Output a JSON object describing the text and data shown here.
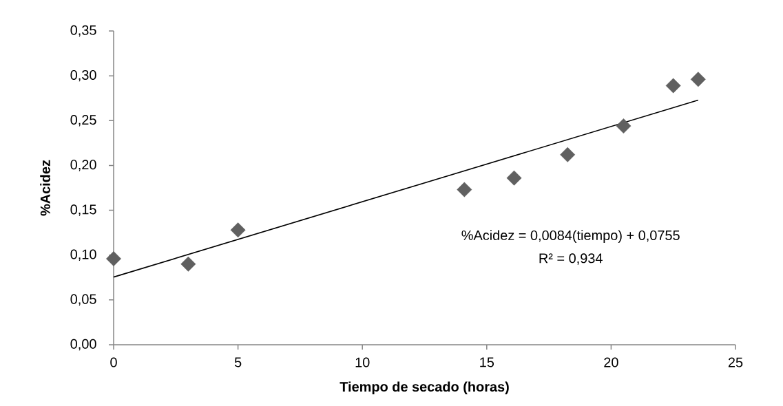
{
  "chart_data": {
    "type": "scatter",
    "xlabel": "Tiempo de secado (horas)",
    "ylabel": "%Acidez",
    "series": [
      {
        "color": "#606060",
        "marker": "diamond",
        "x": [
          0,
          3,
          5,
          14.1,
          16.1,
          18.25,
          20.5,
          22.5,
          23.5
        ],
        "values": [
          0.096,
          0.09,
          0.128,
          0.173,
          0.186,
          0.212,
          0.244,
          0.289,
          0.296
        ]
      },
      {
        "type": "line",
        "color": "#000000",
        "marker": "none",
        "line_style": "solid",
        "x": [
          0,
          23.5
        ],
        "values": [
          0.0755,
          0.2729
        ]
      }
    ],
    "annotations": [
      "%Acidez = 0,0084(tiempo) + 0,0755",
      "R² = 0,934"
    ],
    "xlim": [
      0,
      25
    ],
    "xticks": [
      0,
      5,
      10,
      15,
      20,
      25
    ],
    "ylim": [
      0,
      0.35
    ],
    "yticks": [
      {
        "value": 0,
        "label": "0,00"
      },
      {
        "value": 0.05,
        "label": "0,05"
      },
      {
        "value": 0.1,
        "label": "0,10"
      },
      {
        "value": 0.15,
        "label": "0,15"
      },
      {
        "value": 0.2,
        "label": "0,20"
      },
      {
        "value": 0.25,
        "label": "0,25"
      },
      {
        "value": 0.3,
        "label": "0,30"
      },
      {
        "value": 0.35,
        "label": "0,35"
      }
    ],
    "grid": false
  }
}
